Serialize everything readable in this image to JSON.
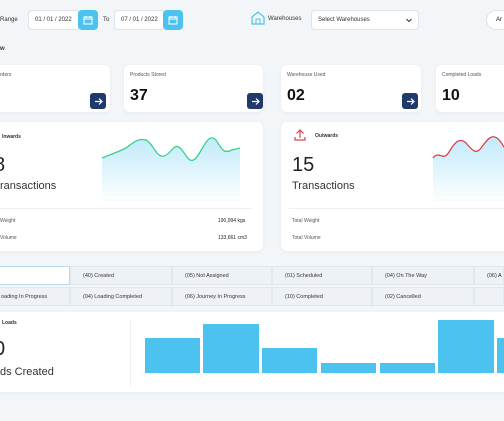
{
  "filters": {
    "range_label": "Range",
    "from_date": "01 / 01 / 2022",
    "to_label": "To",
    "to_date": "07 / 01 / 2022",
    "warehouses_label": "Warehouses",
    "warehouse_select": "Select Warehouses",
    "account_label": "Ar"
  },
  "overview_title": "w",
  "stat_cards": [
    {
      "label": "rders",
      "value": ""
    },
    {
      "label": "Products Stored",
      "value": "37"
    },
    {
      "label": "Warehouse Used",
      "value": "02"
    },
    {
      "label": "Completed Loads",
      "value": "10"
    }
  ],
  "inwards": {
    "title": "Inwards",
    "value": "8",
    "unit": "ransactions",
    "weight_label": "Weight",
    "weight_value": "190,994 kgs",
    "volume_label": "Volume",
    "volume_value": "133,661 cm3"
  },
  "outwards": {
    "title": "Outwards",
    "value": "15",
    "unit": "Transactions",
    "weight_label": "Total Weight",
    "volume_label": "Total Volume"
  },
  "status_row1": [
    "",
    "(40) Created",
    "(05) Not Assigned",
    "(01) Scheduled",
    "(04) On The Way",
    "(06) A"
  ],
  "status_row2": [
    "oading In Progress",
    "(04) Loading Completed",
    "(06) Journey In Progress",
    "(10) Completed",
    "(02) Cancelled",
    ""
  ],
  "loads": {
    "title": "Loads",
    "value": "0",
    "unit": "ds Created"
  },
  "colors": {
    "accent": "#4cc3ee",
    "navy": "#1f3a6b",
    "inward_line": "#3ecf8e",
    "outward_line": "#e0404a"
  }
}
